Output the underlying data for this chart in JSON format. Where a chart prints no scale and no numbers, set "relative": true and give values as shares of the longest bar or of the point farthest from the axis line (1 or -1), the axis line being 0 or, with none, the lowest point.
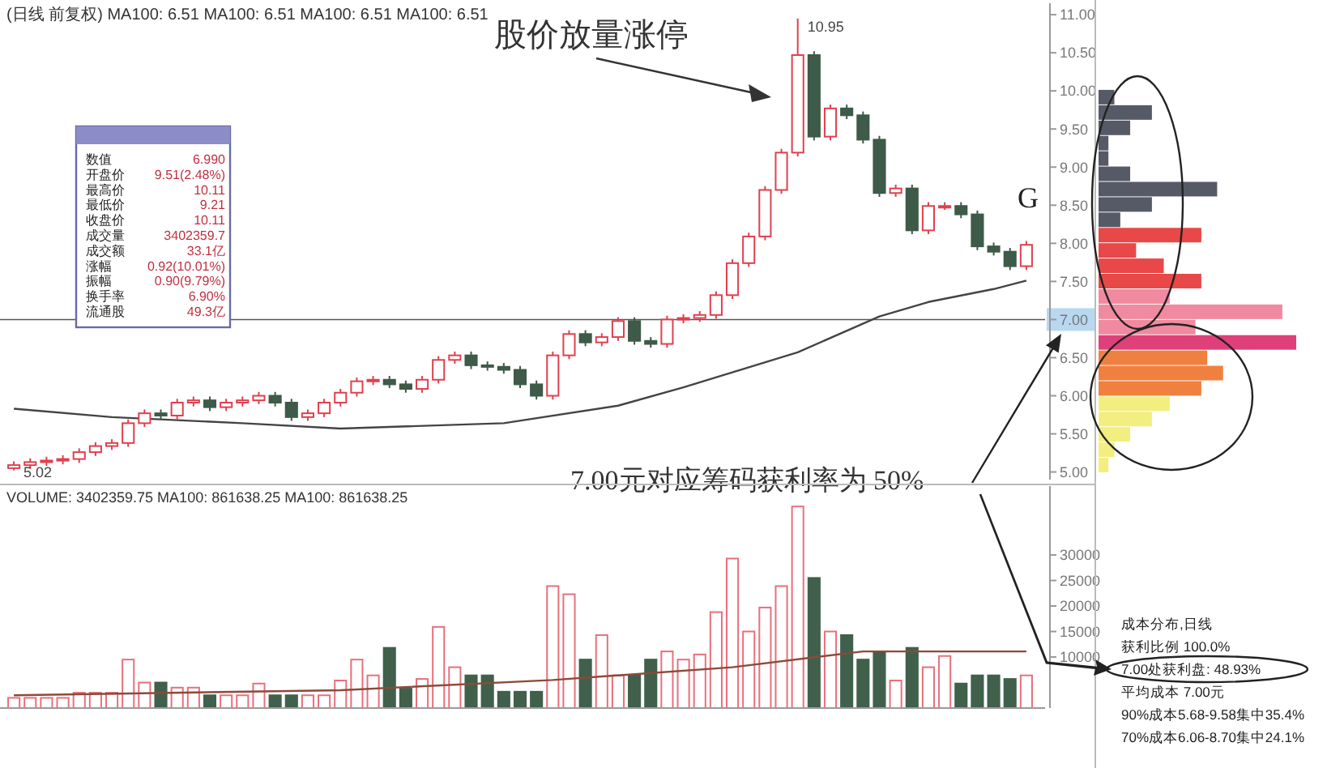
{
  "chart_data": [
    {
      "type": "candlestick",
      "title": "(日线 前复权) MA100: 6.51 MA100: 6.51 MA100: 6.51 MA100: 6.51",
      "categories": [
        null,
        null,
        null,
        null,
        null,
        null,
        null,
        null,
        null,
        null,
        null,
        null,
        null,
        null,
        null,
        null,
        null,
        null,
        null,
        null,
        null,
        null,
        null,
        null,
        null,
        null,
        null,
        null,
        null,
        null,
        null,
        null,
        null,
        null,
        null,
        null,
        null,
        null,
        null,
        null,
        null,
        null,
        null,
        null,
        null,
        null,
        null,
        null,
        null,
        null,
        null,
        null,
        null,
        null,
        null,
        null,
        null,
        null,
        null,
        null,
        null,
        null,
        null
      ],
      "ohlc": [
        [
          5.05,
          5.14,
          5.02,
          5.09
        ],
        [
          5.09,
          5.18,
          5.04,
          5.13
        ],
        [
          5.13,
          5.2,
          5.08,
          5.15
        ],
        [
          5.15,
          5.22,
          5.1,
          5.17
        ],
        [
          5.17,
          5.31,
          5.12,
          5.26
        ],
        [
          5.26,
          5.39,
          5.21,
          5.34
        ],
        [
          5.34,
          5.43,
          5.29,
          5.38
        ],
        [
          5.38,
          5.69,
          5.33,
          5.64
        ],
        [
          5.64,
          5.82,
          5.59,
          5.77
        ],
        [
          5.77,
          5.82,
          5.69,
          5.74
        ],
        [
          5.74,
          5.96,
          5.69,
          5.91
        ],
        [
          5.91,
          5.99,
          5.86,
          5.94
        ],
        [
          5.94,
          5.99,
          5.8,
          5.85
        ],
        [
          5.85,
          5.96,
          5.8,
          5.91
        ],
        [
          5.91,
          5.99,
          5.86,
          5.94
        ],
        [
          5.94,
          6.05,
          5.89,
          6.0
        ],
        [
          6.0,
          6.05,
          5.86,
          5.91
        ],
        [
          5.91,
          5.96,
          5.67,
          5.72
        ],
        [
          5.72,
          5.82,
          5.67,
          5.77
        ],
        [
          5.77,
          5.96,
          5.72,
          5.91
        ],
        [
          5.91,
          6.09,
          5.86,
          6.04
        ],
        [
          6.04,
          6.24,
          5.99,
          6.19
        ],
        [
          6.19,
          6.26,
          6.14,
          6.21
        ],
        [
          6.21,
          6.26,
          6.1,
          6.15
        ],
        [
          6.15,
          6.2,
          6.04,
          6.09
        ],
        [
          6.09,
          6.26,
          6.04,
          6.21
        ],
        [
          6.21,
          6.52,
          6.16,
          6.47
        ],
        [
          6.47,
          6.58,
          6.42,
          6.53
        ],
        [
          6.53,
          6.58,
          6.35,
          6.4
        ],
        [
          6.4,
          6.45,
          6.33,
          6.38
        ],
        [
          6.38,
          6.43,
          6.29,
          6.34
        ],
        [
          6.34,
          6.39,
          6.1,
          6.15
        ],
        [
          6.15,
          6.2,
          5.95,
          6.0
        ],
        [
          6.0,
          6.58,
          5.95,
          6.53
        ],
        [
          6.53,
          6.86,
          6.48,
          6.81
        ],
        [
          6.81,
          6.86,
          6.65,
          6.7
        ],
        [
          6.7,
          6.82,
          6.65,
          6.77
        ],
        [
          6.77,
          7.03,
          6.72,
          6.98
        ],
        [
          6.98,
          7.03,
          6.67,
          6.72
        ],
        [
          6.72,
          6.77,
          6.63,
          6.68
        ],
        [
          6.68,
          7.05,
          6.63,
          7.0
        ],
        [
          7.0,
          7.07,
          6.95,
          7.02
        ],
        [
          7.02,
          7.11,
          6.97,
          7.06
        ],
        [
          7.06,
          7.37,
          7.01,
          7.32
        ],
        [
          7.32,
          7.79,
          7.27,
          7.74
        ],
        [
          7.74,
          8.14,
          7.69,
          8.09
        ],
        [
          8.09,
          8.75,
          8.04,
          8.7
        ],
        [
          8.7,
          9.24,
          8.65,
          9.19
        ],
        [
          9.19,
          10.95,
          9.14,
          10.47
        ],
        [
          10.47,
          10.52,
          9.35,
          9.4
        ],
        [
          9.4,
          9.82,
          9.35,
          9.77
        ],
        [
          9.77,
          9.82,
          9.63,
          9.68
        ],
        [
          9.68,
          9.73,
          9.31,
          9.36
        ],
        [
          9.36,
          9.41,
          8.61,
          8.66
        ],
        [
          8.66,
          8.77,
          8.61,
          8.72
        ],
        [
          8.72,
          8.77,
          8.12,
          8.17
        ],
        [
          8.17,
          8.54,
          8.12,
          8.49
        ],
        [
          8.49,
          8.54,
          8.44,
          8.49
        ],
        [
          8.49,
          8.54,
          8.33,
          8.38
        ],
        [
          8.38,
          8.43,
          7.91,
          7.96
        ],
        [
          7.96,
          8.01,
          7.84,
          7.89
        ],
        [
          7.89,
          7.94,
          7.65,
          7.7
        ],
        [
          7.7,
          8.03,
          7.65,
          7.98
        ]
      ],
      "series": [
        {
          "type": "line",
          "color": "#444444",
          "values": [
            5.83,
            null,
            null,
            null,
            null,
            null,
            5.72,
            null,
            null,
            null,
            null,
            null,
            null,
            null,
            5.64,
            null,
            null,
            null,
            null,
            null,
            5.57,
            null,
            null,
            null,
            null,
            null,
            null,
            null,
            null,
            null,
            5.64,
            null,
            null,
            null,
            null,
            null,
            null,
            5.87,
            null,
            null,
            null,
            6.11,
            null,
            null,
            null,
            null,
            null,
            null,
            6.57,
            null,
            null,
            null,
            null,
            7.04,
            null,
            null,
            7.23,
            null,
            null,
            null,
            7.4,
            null,
            7.51
          ]
        }
      ],
      "ylim": [
        4.9,
        11.15
      ],
      "yticks": [
        {
          "value": 5,
          "label": "5.00"
        },
        {
          "value": 5.5,
          "label": "5.50"
        },
        {
          "value": 6,
          "label": "6.00"
        },
        {
          "value": 6.5,
          "label": "6.50"
        },
        {
          "value": 7,
          "label": "7.00"
        },
        {
          "value": 7.5,
          "label": "7.50"
        },
        {
          "value": 8,
          "label": "8.00"
        },
        {
          "value": 8.5,
          "label": "8.50"
        },
        {
          "value": 9,
          "label": "9.00"
        },
        {
          "value": 9.5,
          "label": "9.50"
        },
        {
          "value": 10,
          "label": "10.00"
        },
        {
          "value": 10.5,
          "label": "10.50"
        },
        {
          "value": 11,
          "label": "11.00"
        }
      ],
      "ref_lines": [
        {
          "axis": "y",
          "value": 7,
          "color": "#555555"
        }
      ],
      "tick_labels": "y",
      "annotations": [
        "股价放量涨停",
        "10.95",
        "5.02",
        "G",
        "7.00元对应筹码获利率为 50%",
        "数值 6.990",
        "开盘价 9.51(2.48%)",
        "最高价 10.11",
        "最低价 9.21",
        "收盘价 10.11",
        "成交量 3402359.7",
        "成交额 33.1亿",
        "涨幅 0.92(10.01%)",
        "振幅 0.90(9.79%)",
        "换手率 6.90%",
        "流通股 49.3亿"
      ]
    },
    {
      "type": "bar",
      "title": "VOLUME: 3402359.75 MA100: 861638.25 MA100: 861638.25",
      "categories": [
        null,
        null,
        null,
        null,
        null,
        null,
        null,
        null,
        null,
        null,
        null,
        null,
        null,
        null,
        null,
        null,
        null,
        null,
        null,
        null,
        null,
        null,
        null,
        null,
        null,
        null,
        null,
        null,
        null,
        null,
        null,
        null,
        null,
        null,
        null,
        null,
        null,
        null,
        null,
        null,
        null,
        null,
        null,
        null,
        null,
        null,
        null,
        null,
        null,
        null,
        null,
        null,
        null,
        null,
        null,
        null,
        null,
        null,
        null,
        null,
        null,
        null,
        null
      ],
      "values": [
        2000,
        2000,
        2000,
        2000,
        3000,
        3000,
        3000,
        9500,
        5000,
        5000,
        4000,
        4000,
        2500,
        2500,
        2500,
        4800,
        2500,
        2500,
        2500,
        2500,
        5400,
        9500,
        6400,
        11800,
        3800,
        5700,
        15900,
        8000,
        6400,
        6400,
        3200,
        3200,
        3200,
        23900,
        22300,
        9500,
        14300,
        6400,
        6400,
        9500,
        11100,
        9500,
        10500,
        18800,
        29300,
        15000,
        19700,
        23900,
        39500,
        25500,
        15000,
        14300,
        9500,
        10800,
        5400,
        11800,
        8000,
        10200,
        4800,
        6400,
        6400,
        5700,
        6400
      ],
      "colors": [
        "#e8707c",
        "#e8707c",
        "#e8707c",
        "#e8707c",
        "#e8707c",
        "#e8707c",
        "#e8707c",
        "#e8707c",
        "#e8707c",
        "#40604c",
        "#e8707c",
        "#e8707c",
        "#40604c",
        "#e8707c",
        "#e8707c",
        "#e8707c",
        "#40604c",
        "#40604c",
        "#e8707c",
        "#e8707c",
        "#e8707c",
        "#e8707c",
        "#e8707c",
        "#40604c",
        "#40604c",
        "#e8707c",
        "#e8707c",
        "#e8707c",
        "#40604c",
        "#40604c",
        "#40604c",
        "#40604c",
        "#40604c",
        "#e8707c",
        "#e8707c",
        "#40604c",
        "#e8707c",
        "#e8707c",
        "#40604c",
        "#40604c",
        "#e8707c",
        "#e8707c",
        "#e8707c",
        "#e8707c",
        "#e8707c",
        "#e8707c",
        "#e8707c",
        "#e8707c",
        "#e8707c",
        "#40604c",
        "#e8707c",
        "#40604c",
        "#40604c",
        "#40604c",
        "#e8707c",
        "#40604c",
        "#e8707c",
        "#e8707c",
        "#40604c",
        "#40604c",
        "#40604c",
        "#40604c",
        "#e8707c"
      ],
      "series": [
        {
          "type": "line",
          "color": "#8b4a3a",
          "values": [
            2500,
            null,
            null,
            null,
            null,
            null,
            null,
            null,
            null,
            null,
            null,
            null,
            null,
            null,
            null,
            null,
            null,
            null,
            null,
            null,
            3500,
            null,
            null,
            null,
            null,
            null,
            null,
            null,
            null,
            null,
            null,
            null,
            null,
            5500,
            null,
            null,
            null,
            null,
            null,
            null,
            null,
            null,
            null,
            null,
            8000,
            null,
            null,
            null,
            null,
            null,
            null,
            null,
            11100,
            null,
            null,
            null,
            null,
            null,
            null,
            null,
            null,
            null,
            11100
          ]
        }
      ],
      "ylim": [
        0,
        43500
      ],
      "yticks": [
        10000,
        15000,
        20000,
        25000,
        30000
      ],
      "tick_labels": "y"
    },
    {
      "type": "bar",
      "orientation": "horizontal",
      "relative": true,
      "categories": [
        null,
        null,
        null,
        null,
        null,
        null,
        null,
        null,
        null,
        null,
        null,
        null,
        null,
        null,
        null,
        null,
        null,
        null,
        null,
        null,
        null,
        null,
        null,
        null,
        null
      ],
      "values": [
        0.08,
        0.27,
        0.16,
        0.05,
        0.05,
        0.16,
        0.6,
        0.27,
        0.11,
        0.52,
        0.19,
        0.33,
        0.52,
        0.36,
        0.93,
        0.49,
        1,
        0.55,
        0.63,
        0.52,
        0.36,
        0.27,
        0.16,
        0.08,
        0.05
      ],
      "colors": [
        "#555a66",
        "#555a66",
        "#555a66",
        "#555a66",
        "#555a66",
        "#555a66",
        "#555a66",
        "#555a66",
        "#555a66",
        "#e84848",
        "#e84848",
        "#e84848",
        "#e84848",
        "#f08aa0",
        "#f08aa0",
        "#f08aa0",
        "#e0407a",
        "#f08040",
        "#f08040",
        "#f08040",
        "#f2ee80",
        "#f2ee80",
        "#f2ee80",
        "#f2ee80",
        "#f2ee80"
      ],
      "annotations": [
        "成本分布,日线",
        "获利比例 100.0%",
        "7.00处获利盘: 48.93%",
        "平均成本 7.00元",
        "90%成本5.68-9.58集中35.4%",
        "70%成本6.06-8.70集中24.1%"
      ]
    }
  ]
}
